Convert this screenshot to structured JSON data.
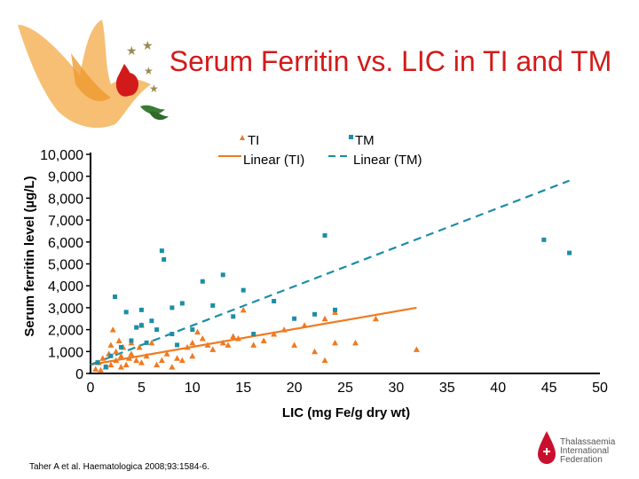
{
  "chart_data": {
    "type": "scatter",
    "title": "Serum Ferritin vs. LIC in TI and TM",
    "xlabel": "LIC (mg Fe/g dry wt)",
    "ylabel": "Serum ferritin level (µg/L)",
    "xlim": [
      0,
      50
    ],
    "ylim": [
      0,
      10000
    ],
    "x_ticks": [
      "0",
      "5",
      "10",
      "15",
      "20",
      "25",
      "30",
      "35",
      "40",
      "45",
      "50"
    ],
    "y_ticks": [
      "0",
      "1,000",
      "2,000",
      "3,000",
      "4,000",
      "5,000",
      "6,000",
      "7,000",
      "8,000",
      "9,000",
      "10,000"
    ],
    "legend": [
      {
        "label": "TI",
        "kind": "marker",
        "color": "#f07a20"
      },
      {
        "label": "TM",
        "kind": "marker",
        "color": "#1b8ea6"
      },
      {
        "label": "Linear (TI)",
        "kind": "line",
        "color": "#f07a20"
      },
      {
        "label": "Linear (TM)",
        "kind": "dashed",
        "color": "#1b8ea6"
      }
    ],
    "series": [
      {
        "name": "TI",
        "marker": "triangle",
        "color": "#f07a20",
        "points": [
          [
            0.5,
            200
          ],
          [
            0.8,
            500
          ],
          [
            1,
            150
          ],
          [
            1.2,
            700
          ],
          [
            1.5,
            300
          ],
          [
            1.8,
            900
          ],
          [
            2,
            1300
          ],
          [
            2,
            400
          ],
          [
            2.2,
            2000
          ],
          [
            2.5,
            600
          ],
          [
            2.5,
            1000
          ],
          [
            2.8,
            1500
          ],
          [
            3,
            800
          ],
          [
            3,
            300
          ],
          [
            3.2,
            1200
          ],
          [
            3.5,
            400
          ],
          [
            3.8,
            700
          ],
          [
            4,
            1400
          ],
          [
            4,
            900
          ],
          [
            4.5,
            600
          ],
          [
            4.8,
            1200
          ],
          [
            5,
            500
          ],
          [
            5,
            2200
          ],
          [
            5.5,
            800
          ],
          [
            6,
            1400
          ],
          [
            6.5,
            400
          ],
          [
            7,
            600
          ],
          [
            7.5,
            900
          ],
          [
            8,
            300
          ],
          [
            8.5,
            700
          ],
          [
            9,
            600
          ],
          [
            9.5,
            1200
          ],
          [
            10,
            800
          ],
          [
            10,
            1400
          ],
          [
            10.5,
            1900
          ],
          [
            11,
            1600
          ],
          [
            11.5,
            1300
          ],
          [
            12,
            1100
          ],
          [
            13,
            1400
          ],
          [
            13.5,
            1300
          ],
          [
            14,
            1700
          ],
          [
            14.5,
            1600
          ],
          [
            15,
            2900
          ],
          [
            16,
            1300
          ],
          [
            17,
            1500
          ],
          [
            18,
            1800
          ],
          [
            19,
            2000
          ],
          [
            20,
            1300
          ],
          [
            21,
            2200
          ],
          [
            22,
            1000
          ],
          [
            23,
            2500
          ],
          [
            23,
            600
          ],
          [
            24,
            2800
          ],
          [
            24,
            1400
          ],
          [
            26,
            1400
          ],
          [
            28,
            2500
          ],
          [
            32,
            1100
          ]
        ]
      },
      {
        "name": "TM",
        "marker": "square",
        "color": "#1b8ea6",
        "points": [
          [
            0.7,
            500
          ],
          [
            1.5,
            300
          ],
          [
            2,
            800
          ],
          [
            2.4,
            3500
          ],
          [
            3,
            1200
          ],
          [
            3.5,
            2800
          ],
          [
            4,
            1500
          ],
          [
            4.5,
            2100
          ],
          [
            5,
            2200
          ],
          [
            5,
            2900
          ],
          [
            5.5,
            1400
          ],
          [
            6,
            2400
          ],
          [
            6.5,
            2000
          ],
          [
            7,
            5600
          ],
          [
            7.2,
            5200
          ],
          [
            8,
            3000
          ],
          [
            8,
            1800
          ],
          [
            8.5,
            1300
          ],
          [
            9,
            3200
          ],
          [
            10,
            2000
          ],
          [
            11,
            4200
          ],
          [
            12,
            3100
          ],
          [
            13,
            4500
          ],
          [
            14,
            2600
          ],
          [
            15,
            3800
          ],
          [
            16,
            1800
          ],
          [
            18,
            3300
          ],
          [
            20,
            2500
          ],
          [
            22,
            2700
          ],
          [
            23,
            6300
          ],
          [
            24,
            2900
          ],
          [
            44.5,
            6100
          ],
          [
            47,
            5500
          ]
        ]
      }
    ],
    "trendlines": [
      {
        "name": "Linear (TI)",
        "x": [
          0,
          32
        ],
        "y": [
          400,
          3000
        ]
      },
      {
        "name": "Linear (TM)",
        "x": [
          0,
          47
        ],
        "y": [
          400,
          8800
        ]
      }
    ]
  },
  "citation": "Taher A et al. Haematologica 2008;93:1584-6.",
  "logo": {
    "line1": "Thalassaemia",
    "line2": "International",
    "line3": "Federation"
  }
}
